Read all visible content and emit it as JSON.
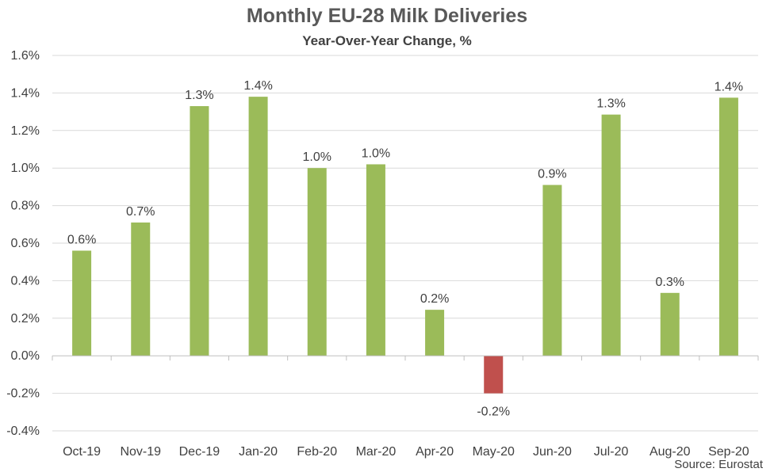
{
  "chart_data": {
    "type": "bar",
    "title": "Monthly EU-28 Milk Deliveries",
    "subtitle": "Year-Over-Year Change, %",
    "source": "Source: Eurostat",
    "categories": [
      "Oct-19",
      "Nov-19",
      "Dec-19",
      "Jan-20",
      "Feb-20",
      "Mar-20",
      "Apr-20",
      "May-20",
      "Jun-20",
      "Jul-20",
      "Aug-20",
      "Sep-20"
    ],
    "values": [
      0.56,
      0.71,
      1.33,
      1.38,
      1.0,
      1.02,
      0.245,
      -0.2,
      0.91,
      1.285,
      0.335,
      1.375
    ],
    "data_labels": [
      "0.6%",
      "0.7%",
      "1.3%",
      "1.4%",
      "1.0%",
      "1.0%",
      "0.2%",
      "-0.2%",
      "0.9%",
      "1.3%",
      "0.3%",
      "1.4%"
    ],
    "ylim": [
      -0.4,
      1.6
    ],
    "yticks": [
      1.6,
      1.4,
      1.2,
      1.0,
      0.8,
      0.6,
      0.4,
      0.2,
      0.0,
      -0.2,
      -0.4
    ],
    "ytick_labels": [
      "1.6%",
      "1.4%",
      "1.2%",
      "1.0%",
      "0.8%",
      "0.6%",
      "0.4%",
      "0.2%",
      "0.0%",
      "-0.2%",
      "-0.4%"
    ],
    "grid": true,
    "colors": {
      "positive": "#9BBB59",
      "negative": "#C0504D",
      "grid": "#D9D9D9",
      "axis": "#BFBFBF"
    }
  }
}
